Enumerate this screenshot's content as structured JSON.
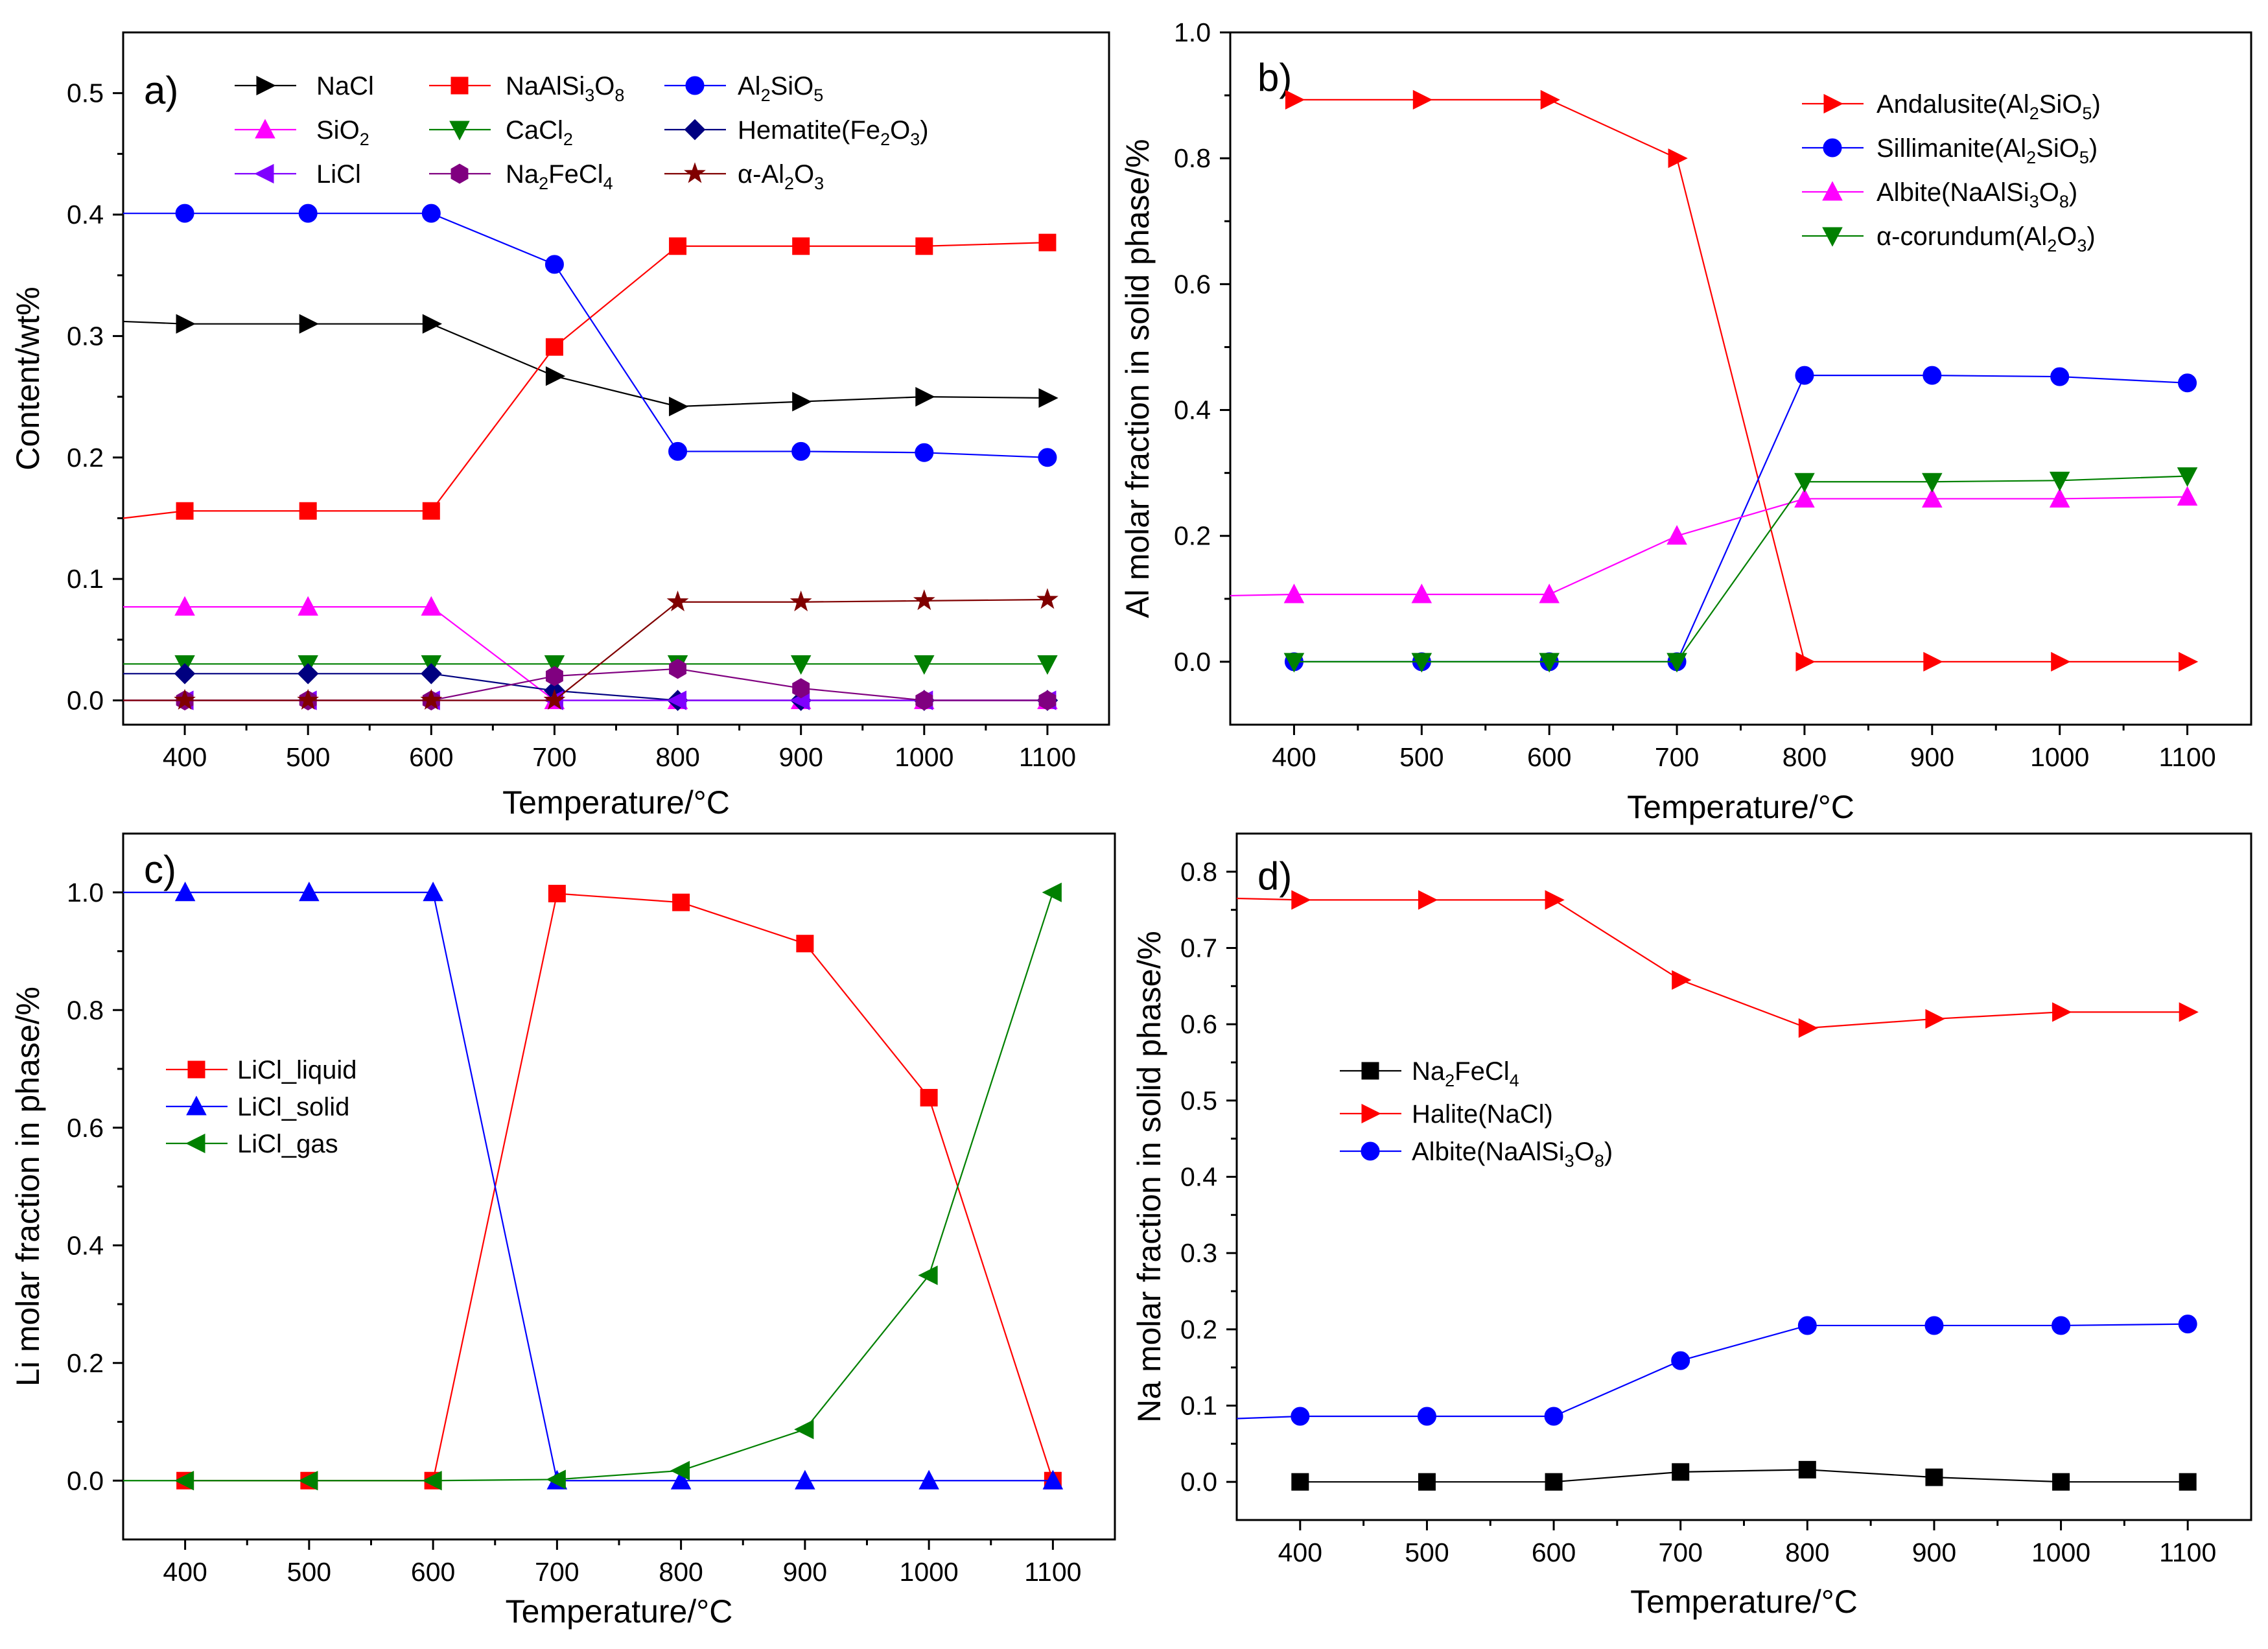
{
  "figure": {
    "panels": [
      "a)",
      "b)",
      "c)",
      "d)"
    ]
  },
  "chart_data": [
    {
      "type": "line",
      "label": "a)",
      "xlabel": "Temperature/°C",
      "ylabel": "Content/wt%",
      "xlim": [
        350,
        1150
      ],
      "ylim": [
        -0.02,
        0.55
      ],
      "x": [
        400,
        500,
        600,
        700,
        800,
        900,
        1000,
        1100
      ],
      "xticks": [
        400,
        500,
        600,
        700,
        800,
        900,
        1000,
        1100
      ],
      "yticks": [
        0.0,
        0.1,
        0.2,
        0.3,
        0.4,
        0.5
      ],
      "ytick_labels": [
        "0.0",
        "0.1",
        "0.2",
        "0.3",
        "0.4",
        "0.5"
      ],
      "legend_columns": 3,
      "legend_position": "top",
      "series": [
        {
          "name": "NaCl",
          "legend_rich": [
            [
              "NaCl",
              ""
            ]
          ],
          "color": "#000000",
          "marker": "tri-right",
          "values": [
            0.31,
            0.31,
            0.31,
            0.267,
            0.242,
            0.246,
            0.25,
            0.249
          ],
          "start": 0.312
        },
        {
          "name": "NaAlSi3O8",
          "legend_rich": [
            [
              "NaAlSi",
              ""
            ],
            [
              "3",
              "sub"
            ],
            [
              "O",
              ""
            ],
            [
              "8",
              "sub"
            ]
          ],
          "color": "#ff0000",
          "marker": "square",
          "values": [
            0.156,
            0.156,
            0.156,
            0.291,
            0.374,
            0.374,
            0.374,
            0.377
          ],
          "start": 0.15
        },
        {
          "name": "Al2SiO5",
          "legend_rich": [
            [
              "Al",
              ""
            ],
            [
              "2",
              "sub"
            ],
            [
              "SiO",
              ""
            ],
            [
              "5",
              "sub"
            ]
          ],
          "color": "#0000ff",
          "marker": "circle",
          "values": [
            0.401,
            0.401,
            0.401,
            0.359,
            0.205,
            0.205,
            0.204,
            0.2
          ],
          "start": 0.401
        },
        {
          "name": "SiO2",
          "legend_rich": [
            [
              "SiO",
              ""
            ],
            [
              "2",
              "sub"
            ]
          ],
          "color": "#ff00ff",
          "marker": "tri-up",
          "values": [
            0.077,
            0.077,
            0.077,
            0.0,
            0.0,
            0.0,
            0.0,
            0.0
          ],
          "start": 0.077
        },
        {
          "name": "CaCl2",
          "legend_rich": [
            [
              "CaCl",
              ""
            ],
            [
              "2",
              "sub"
            ]
          ],
          "color": "#008000",
          "marker": "tri-down",
          "values": [
            0.03,
            0.03,
            0.03,
            0.03,
            0.03,
            0.03,
            0.03,
            0.03
          ],
          "start": 0.03
        },
        {
          "name": "Hematite(Fe2O3)",
          "legend_rich": [
            [
              "Hematite(Fe",
              ""
            ],
            [
              "2",
              "sub"
            ],
            [
              "O",
              ""
            ],
            [
              "3",
              "sub"
            ],
            [
              ")",
              ""
            ]
          ],
          "color": "#000080",
          "marker": "diamond",
          "values": [
            0.022,
            0.022,
            0.022,
            0.008,
            0.0,
            0.0,
            0.0,
            0.0
          ],
          "start": 0.022
        },
        {
          "name": "LiCl",
          "legend_rich": [
            [
              "LiCl",
              ""
            ]
          ],
          "color": "#8000ff",
          "marker": "tri-left",
          "values": [
            0.0,
            0.0,
            0.0,
            0.0,
            0.0,
            0.0,
            0.0,
            0.0
          ],
          "start": 0.0
        },
        {
          "name": "Na2FeCl4",
          "legend_rich": [
            [
              "Na",
              ""
            ],
            [
              "2",
              "sub"
            ],
            [
              "FeCl",
              ""
            ],
            [
              "4",
              "sub"
            ]
          ],
          "color": "#800080",
          "marker": "hexagon",
          "values": [
            0.0,
            0.0,
            0.0,
            0.02,
            0.026,
            0.01,
            0.0,
            0.0
          ],
          "start": 0.0
        },
        {
          "name": "α-Al2O3",
          "legend_rich": [
            [
              "α-Al",
              ""
            ],
            [
              "2",
              "sub"
            ],
            [
              "O",
              ""
            ],
            [
              "3",
              "sub"
            ]
          ],
          "color": "#800000",
          "marker": "star",
          "values": [
            0.0,
            0.0,
            0.0,
            0.0,
            0.081,
            0.081,
            0.082,
            0.083
          ],
          "start": 0.0
        }
      ]
    },
    {
      "type": "line",
      "label": "b)",
      "xlabel": "Temperature/°C",
      "ylabel": "Al molar fraction in solid phase/%",
      "xlim": [
        350,
        1150
      ],
      "ylim": [
        -0.1,
        1.0
      ],
      "x": [
        400,
        500,
        600,
        700,
        800,
        900,
        1000,
        1100
      ],
      "xticks": [
        400,
        500,
        600,
        700,
        800,
        900,
        1000,
        1100
      ],
      "yticks": [
        0.0,
        0.2,
        0.4,
        0.6,
        0.8,
        1.0
      ],
      "ytick_labels": [
        "0.0",
        "0.2",
        "0.4",
        "0.6",
        "0.8",
        "1.0"
      ],
      "legend_columns": 1,
      "legend_position": "top-right",
      "series": [
        {
          "name": "Andalusite(Al2SiO5)",
          "legend_rich": [
            [
              "Andalusite(Al",
              ""
            ],
            [
              "2",
              "sub"
            ],
            [
              "SiO",
              ""
            ],
            [
              "5",
              "sub"
            ],
            [
              ")",
              ""
            ]
          ],
          "color": "#ff0000",
          "marker": "tri-right",
          "values": [
            0.893,
            0.893,
            0.893,
            0.8,
            0.0,
            0.0,
            0.0,
            0.0
          ]
        },
        {
          "name": "Sillimanite(Al2SiO5)",
          "legend_rich": [
            [
              "Sillimanite(Al",
              ""
            ],
            [
              "2",
              "sub"
            ],
            [
              "SiO",
              ""
            ],
            [
              "5",
              "sub"
            ],
            [
              ")",
              ""
            ]
          ],
          "color": "#0000ff",
          "marker": "circle",
          "values": [
            0.0,
            0.0,
            0.0,
            0.0,
            0.455,
            0.455,
            0.453,
            0.443
          ]
        },
        {
          "name": "Albite(NaAlSi3O8)",
          "legend_rich": [
            [
              "Albite(NaAlSi",
              ""
            ],
            [
              "3",
              "sub"
            ],
            [
              "O",
              ""
            ],
            [
              "8",
              "sub"
            ],
            [
              ")",
              ""
            ]
          ],
          "color": "#ff00ff",
          "marker": "tri-up",
          "values": [
            0.107,
            0.107,
            0.107,
            0.2,
            0.259,
            0.259,
            0.259,
            0.262
          ],
          "start": 0.105
        },
        {
          "name": "α-corundum(Al2O3)",
          "legend_rich": [
            [
              "α-corundum(Al",
              ""
            ],
            [
              "2",
              "sub"
            ],
            [
              "O",
              ""
            ],
            [
              "3",
              "sub"
            ],
            [
              ")",
              ""
            ]
          ],
          "color": "#008000",
          "marker": "tri-down",
          "values": [
            0.0,
            0.0,
            0.0,
            0.0,
            0.286,
            0.286,
            0.288,
            0.295
          ]
        }
      ]
    },
    {
      "type": "line",
      "label": "c)",
      "xlabel": "Temperature/°C",
      "ylabel": "Li molar fraction in phase/%",
      "xlim": [
        350,
        1150
      ],
      "ylim": [
        -0.1,
        1.1
      ],
      "x": [
        400,
        500,
        600,
        700,
        800,
        900,
        1000,
        1100
      ],
      "xticks": [
        400,
        500,
        600,
        700,
        800,
        900,
        1000,
        1100
      ],
      "yticks": [
        0.0,
        0.2,
        0.4,
        0.6,
        0.8,
        1.0
      ],
      "ytick_labels": [
        "0.0",
        "0.2",
        "0.4",
        "0.6",
        "0.8",
        "1.0"
      ],
      "legend_columns": 1,
      "legend_position": "middle-left",
      "series": [
        {
          "name": "LiCl_liquid",
          "legend_rich": [
            [
              "LiCl_liquid",
              ""
            ]
          ],
          "color": "#ff0000",
          "marker": "square",
          "values": [
            0.0,
            0.0,
            0.0,
            0.998,
            0.983,
            0.913,
            0.651,
            0.0
          ]
        },
        {
          "name": "LiCl_solid",
          "legend_rich": [
            [
              "LiCl_solid",
              ""
            ]
          ],
          "color": "#0000ff",
          "marker": "tri-up",
          "values": [
            1.0,
            1.0,
            1.0,
            0.0,
            0.0,
            0.0,
            0.0,
            0.0
          ],
          "start": 1.0
        },
        {
          "name": "LiCl_gas",
          "legend_rich": [
            [
              "LiCl_gas",
              ""
            ]
          ],
          "color": "#008000",
          "marker": "tri-left",
          "values": [
            0.0,
            0.0,
            0.0,
            0.002,
            0.017,
            0.087,
            0.349,
            1.0
          ],
          "start": 0.0
        }
      ]
    },
    {
      "type": "line",
      "label": "d)",
      "xlabel": "Temperature/°C",
      "ylabel": "Na molar fraction in solid phase/%",
      "xlim": [
        350,
        1150
      ],
      "ylim": [
        -0.05,
        0.85
      ],
      "x": [
        400,
        500,
        600,
        700,
        800,
        900,
        1000,
        1100
      ],
      "xticks": [
        400,
        500,
        600,
        700,
        800,
        900,
        1000,
        1100
      ],
      "yticks": [
        0.0,
        0.1,
        0.2,
        0.3,
        0.4,
        0.5,
        0.6,
        0.7,
        0.8
      ],
      "ytick_labels": [
        "0.0",
        "0.1",
        "0.2",
        "0.3",
        "0.4",
        "0.5",
        "0.6",
        "0.7",
        "0.8"
      ],
      "legend_columns": 1,
      "legend_position": "middle-left",
      "series": [
        {
          "name": "Na2FeCl4",
          "legend_rich": [
            [
              "Na",
              ""
            ],
            [
              "2",
              "sub"
            ],
            [
              "FeCl",
              ""
            ],
            [
              "4",
              "sub"
            ]
          ],
          "color": "#000000",
          "marker": "square",
          "values": [
            0.0,
            0.0,
            0.0,
            0.013,
            0.016,
            0.006,
            0.0,
            0.0
          ]
        },
        {
          "name": "Halite(NaCl)",
          "legend_rich": [
            [
              "Halite(NaCl)",
              ""
            ]
          ],
          "color": "#ff0000",
          "marker": "tri-right",
          "values": [
            0.763,
            0.763,
            0.763,
            0.658,
            0.595,
            0.607,
            0.616,
            0.616
          ],
          "start": 0.765
        },
        {
          "name": "Albite(NaAlSi3O8)",
          "legend_rich": [
            [
              "Albite(NaAlSi",
              ""
            ],
            [
              "3",
              "sub"
            ],
            [
              "O",
              ""
            ],
            [
              "8",
              "sub"
            ],
            [
              ")",
              ""
            ]
          ],
          "color": "#0000ff",
          "marker": "circle",
          "values": [
            0.086,
            0.086,
            0.086,
            0.159,
            0.205,
            0.205,
            0.205,
            0.207
          ],
          "start": 0.083
        }
      ]
    }
  ]
}
